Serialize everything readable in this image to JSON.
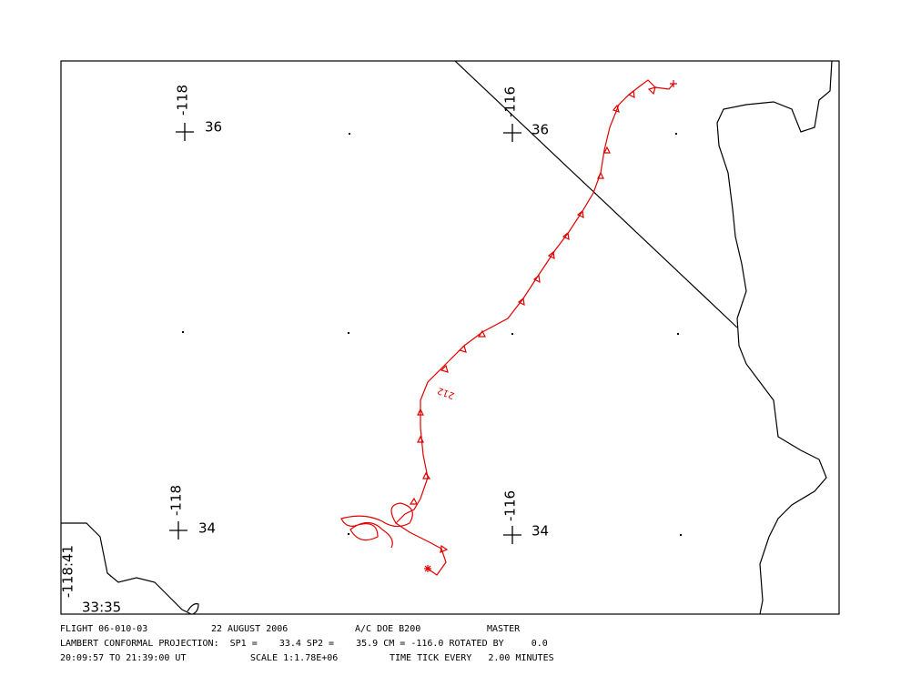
{
  "map": {
    "grid_labels": [
      {
        "lon": "-118",
        "lat": "36"
      },
      {
        "lon": "-116",
        "lat": "36"
      },
      {
        "lon": "-118",
        "lat": "34"
      },
      {
        "lon": "-116",
        "lat": "34"
      }
    ],
    "corner": {
      "lon": "-118:41",
      "lat": "33:35"
    },
    "track_label": "212"
  },
  "footer": {
    "lines": [
      [
        "FLIGHT 06-010-03",
        "22 AUGUST 2006",
        "A/C DOE B200",
        "MASTER"
      ],
      [
        "LAMBERT CONFORMAL PROJECTION:  SP1 =    33.4 SP2 =    35.9 CM = -116.0 ROTATED BY     0.0"
      ],
      [
        "20:09:57 TO 21:39:00 UT",
        "SCALE 1:1.78E+06",
        "TIME TICK EVERY   2.00 MINUTES"
      ]
    ]
  }
}
